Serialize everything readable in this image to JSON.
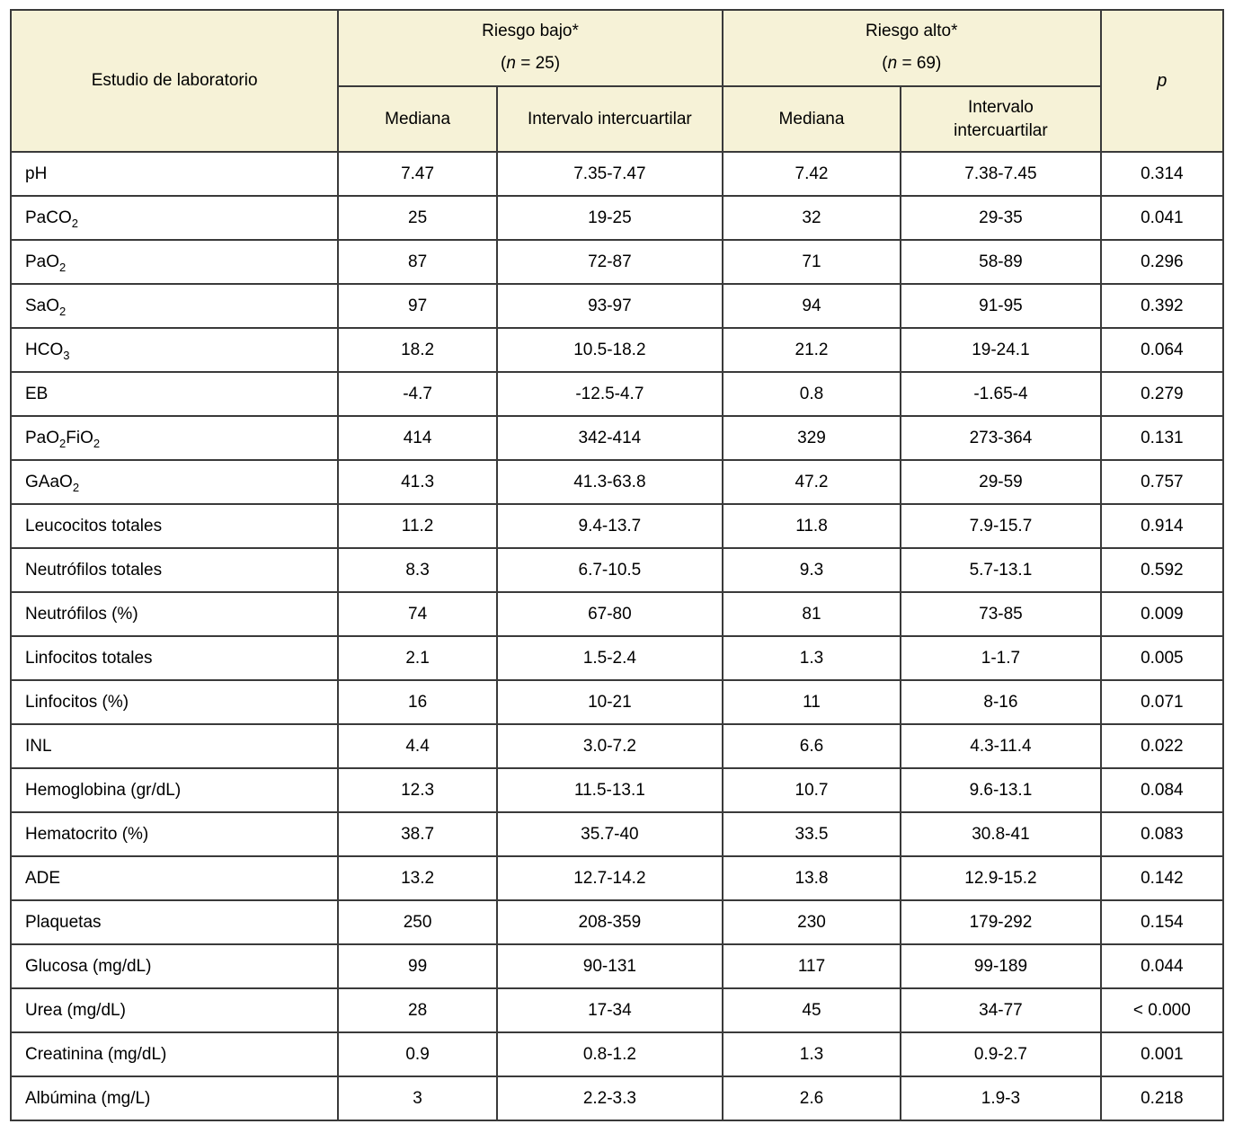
{
  "colors": {
    "header_background": "#f6f2d7",
    "border": "#3a3a3a",
    "body_background": "#ffffff",
    "text": "#000000"
  },
  "table": {
    "header": {
      "study_col": "Estudio de laboratorio",
      "group_low": {
        "title": "Riesgo bajo*",
        "paren_open": "(",
        "n": "n",
        "count": " = 25)"
      },
      "group_high": {
        "title": "Riesgo alto*",
        "paren_open": "(",
        "n": "n",
        "count": " = 69)"
      },
      "sub_low": [
        "Mediana",
        "Intervalo intercuartilar"
      ],
      "sub_high": [
        "Mediana",
        "Intervalo intercuartilar"
      ],
      "p_label": "p"
    },
    "rows": [
      {
        "label": [
          "pH"
        ],
        "values": [
          "7.47",
          "7.35-7.47",
          "7.42",
          "7.38-7.45",
          "0.314"
        ]
      },
      {
        "label": [
          "PaCO",
          {
            "sub": "2"
          }
        ],
        "values": [
          "25",
          "19-25",
          "32",
          "29-35",
          "0.041"
        ]
      },
      {
        "label": [
          "PaO",
          {
            "sub": "2"
          }
        ],
        "values": [
          "87",
          "72-87",
          "71",
          "58-89",
          "0.296"
        ]
      },
      {
        "label": [
          "SaO",
          {
            "sub": "2"
          }
        ],
        "values": [
          "97",
          "93-97",
          "94",
          "91-95",
          "0.392"
        ]
      },
      {
        "label": [
          "HCO",
          {
            "sub": "3"
          }
        ],
        "values": [
          "18.2",
          "10.5-18.2",
          "21.2",
          "19-24.1",
          "0.064"
        ]
      },
      {
        "label": [
          "EB"
        ],
        "values": [
          "-4.7",
          "-12.5-4.7",
          "0.8",
          "-1.65-4",
          "0.279"
        ]
      },
      {
        "label": [
          "PaO",
          {
            "sub": "2"
          },
          "FiO",
          {
            "sub": "2"
          }
        ],
        "values": [
          "414",
          "342-414",
          "329",
          "273-364",
          "0.131"
        ]
      },
      {
        "label": [
          "GAaO",
          {
            "sub": "2"
          }
        ],
        "values": [
          "41.3",
          "41.3-63.8",
          "47.2",
          "29-59",
          "0.757"
        ]
      },
      {
        "label": [
          "Leucocitos totales"
        ],
        "values": [
          "11.2",
          "9.4-13.7",
          "11.8",
          "7.9-15.7",
          "0.914"
        ]
      },
      {
        "label": [
          "Neutrófilos totales"
        ],
        "values": [
          "8.3",
          "6.7-10.5",
          "9.3",
          "5.7-13.1",
          "0.592"
        ]
      },
      {
        "label": [
          "Neutrófilos (%)"
        ],
        "values": [
          "74",
          "67-80",
          "81",
          "73-85",
          "0.009"
        ]
      },
      {
        "label": [
          "Linfocitos totales"
        ],
        "values": [
          "2.1",
          "1.5-2.4",
          "1.3",
          "1-1.7",
          "0.005"
        ]
      },
      {
        "label": [
          "Linfocitos (%)"
        ],
        "values": [
          "16",
          "10-21",
          "11",
          "8-16",
          "0.071"
        ]
      },
      {
        "label": [
          "INL"
        ],
        "values": [
          "4.4",
          "3.0-7.2",
          "6.6",
          "4.3-11.4",
          "0.022"
        ]
      },
      {
        "label": [
          "Hemoglobina (gr/dL)"
        ],
        "values": [
          "12.3",
          "11.5-13.1",
          "10.7",
          "9.6-13.1",
          "0.084"
        ]
      },
      {
        "label": [
          "Hematocrito (%)"
        ],
        "values": [
          "38.7",
          "35.7-40",
          "33.5",
          "30.8-41",
          "0.083"
        ]
      },
      {
        "label": [
          "ADE"
        ],
        "values": [
          "13.2",
          "12.7-14.2",
          "13.8",
          "12.9-15.2",
          "0.142"
        ]
      },
      {
        "label": [
          "Plaquetas"
        ],
        "values": [
          "250",
          "208-359",
          "230",
          "179-292",
          "0.154"
        ]
      },
      {
        "label": [
          "Glucosa (mg/dL)"
        ],
        "values": [
          "99",
          "90-131",
          "117",
          "99-189",
          "0.044"
        ]
      },
      {
        "label": [
          "Urea (mg/dL)"
        ],
        "values": [
          "28",
          "17-34",
          "45",
          "34-77",
          "< 0.000"
        ]
      },
      {
        "label": [
          "Creatinina (mg/dL)"
        ],
        "values": [
          "0.9",
          "0.8-1.2",
          "1.3",
          "0.9-2.7",
          "0.001"
        ]
      },
      {
        "label": [
          "Albúmina (mg/L)"
        ],
        "values": [
          "3",
          "2.2-3.3",
          "2.6",
          "1.9-3",
          "0.218"
        ]
      }
    ]
  }
}
